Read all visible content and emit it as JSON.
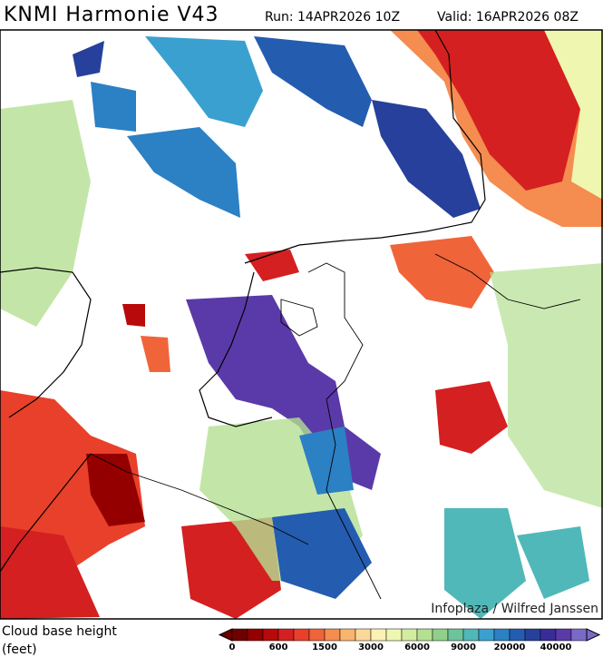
{
  "header": {
    "title": "KNMI Harmonie V43",
    "run": "Run: 14APR2026 10Z",
    "valid": "Valid: 16APR2026 08Z"
  },
  "map": {
    "credit": "Infoplaza / Wilfred Janssen"
  },
  "legend": {
    "label_line1": "Cloud base height",
    "label_line2": "(feet)",
    "ticks": [
      "0",
      "600",
      "1500",
      "3000",
      "6000",
      "9000",
      "20000",
      "40000"
    ],
    "colors": [
      "#6e0000",
      "#940000",
      "#b80a0a",
      "#d42020",
      "#e8402a",
      "#f0643a",
      "#f58c50",
      "#f9b46e",
      "#fcd898",
      "#fdf0b4",
      "#eef6b0",
      "#d4eca0",
      "#b4e092",
      "#90d08a",
      "#6cc49a",
      "#50b8b8",
      "#3aa0d0",
      "#2c80c4",
      "#245cb0",
      "#26409c",
      "#3a2c98",
      "#5a3aa8",
      "#7a6ac8"
    ]
  }
}
